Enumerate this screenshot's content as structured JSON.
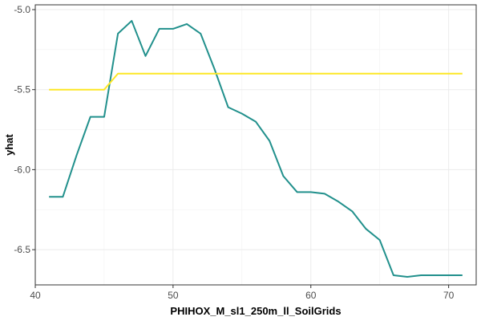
{
  "chart_data": {
    "type": "line",
    "title": "",
    "xlabel": "PHIHOX_M_sl1_250m_ll_SoilGrids",
    "ylabel": "yhat",
    "xlim": [
      40,
      72
    ],
    "ylim": [
      -6.72,
      -4.97
    ],
    "x_ticks": [
      40,
      50,
      60,
      70
    ],
    "y_ticks": [
      -6.5,
      -6.0,
      -5.5,
      -5.0
    ],
    "x_tick_labels": [
      "40",
      "50",
      "60",
      "70"
    ],
    "y_tick_labels": [
      "-6.5",
      "-6.0",
      "-5.5",
      "-5.0"
    ],
    "grid": true,
    "legend": "none",
    "series": [
      {
        "color": "#21908c",
        "x": [
          41,
          42,
          43,
          44,
          45,
          46,
          47,
          48,
          49,
          50,
          51,
          52,
          53,
          54,
          55,
          56,
          57,
          58,
          59,
          60,
          61,
          62,
          63,
          64,
          65,
          66,
          67,
          68,
          69,
          70,
          71
        ],
        "y": [
          -6.17,
          -6.17,
          -5.91,
          -5.67,
          -5.67,
          -5.15,
          -5.07,
          -5.29,
          -5.12,
          -5.12,
          -5.09,
          -5.15,
          -5.37,
          -5.61,
          -5.65,
          -5.7,
          -5.82,
          -6.04,
          -6.14,
          -6.14,
          -6.15,
          -6.2,
          -6.26,
          -6.37,
          -6.44,
          -6.66,
          -6.67,
          -6.66,
          -6.66,
          -6.66,
          -6.66
        ]
      },
      {
        "color": "#fde725",
        "x": [
          41,
          42,
          43,
          44,
          45,
          46,
          47,
          48,
          49,
          50,
          51,
          52,
          53,
          54,
          55,
          56,
          57,
          58,
          59,
          60,
          61,
          62,
          63,
          64,
          65,
          66,
          67,
          68,
          69,
          70,
          71
        ],
        "y": [
          -5.5,
          -5.5,
          -5.5,
          -5.5,
          -5.5,
          -5.4,
          -5.4,
          -5.4,
          -5.4,
          -5.4,
          -5.4,
          -5.4,
          -5.4,
          -5.4,
          -5.4,
          -5.4,
          -5.4,
          -5.4,
          -5.4,
          -5.4,
          -5.4,
          -5.4,
          -5.4,
          -5.4,
          -5.4,
          -5.4,
          -5.4,
          -5.4,
          -5.4,
          -5.4,
          -5.4
        ]
      }
    ]
  }
}
